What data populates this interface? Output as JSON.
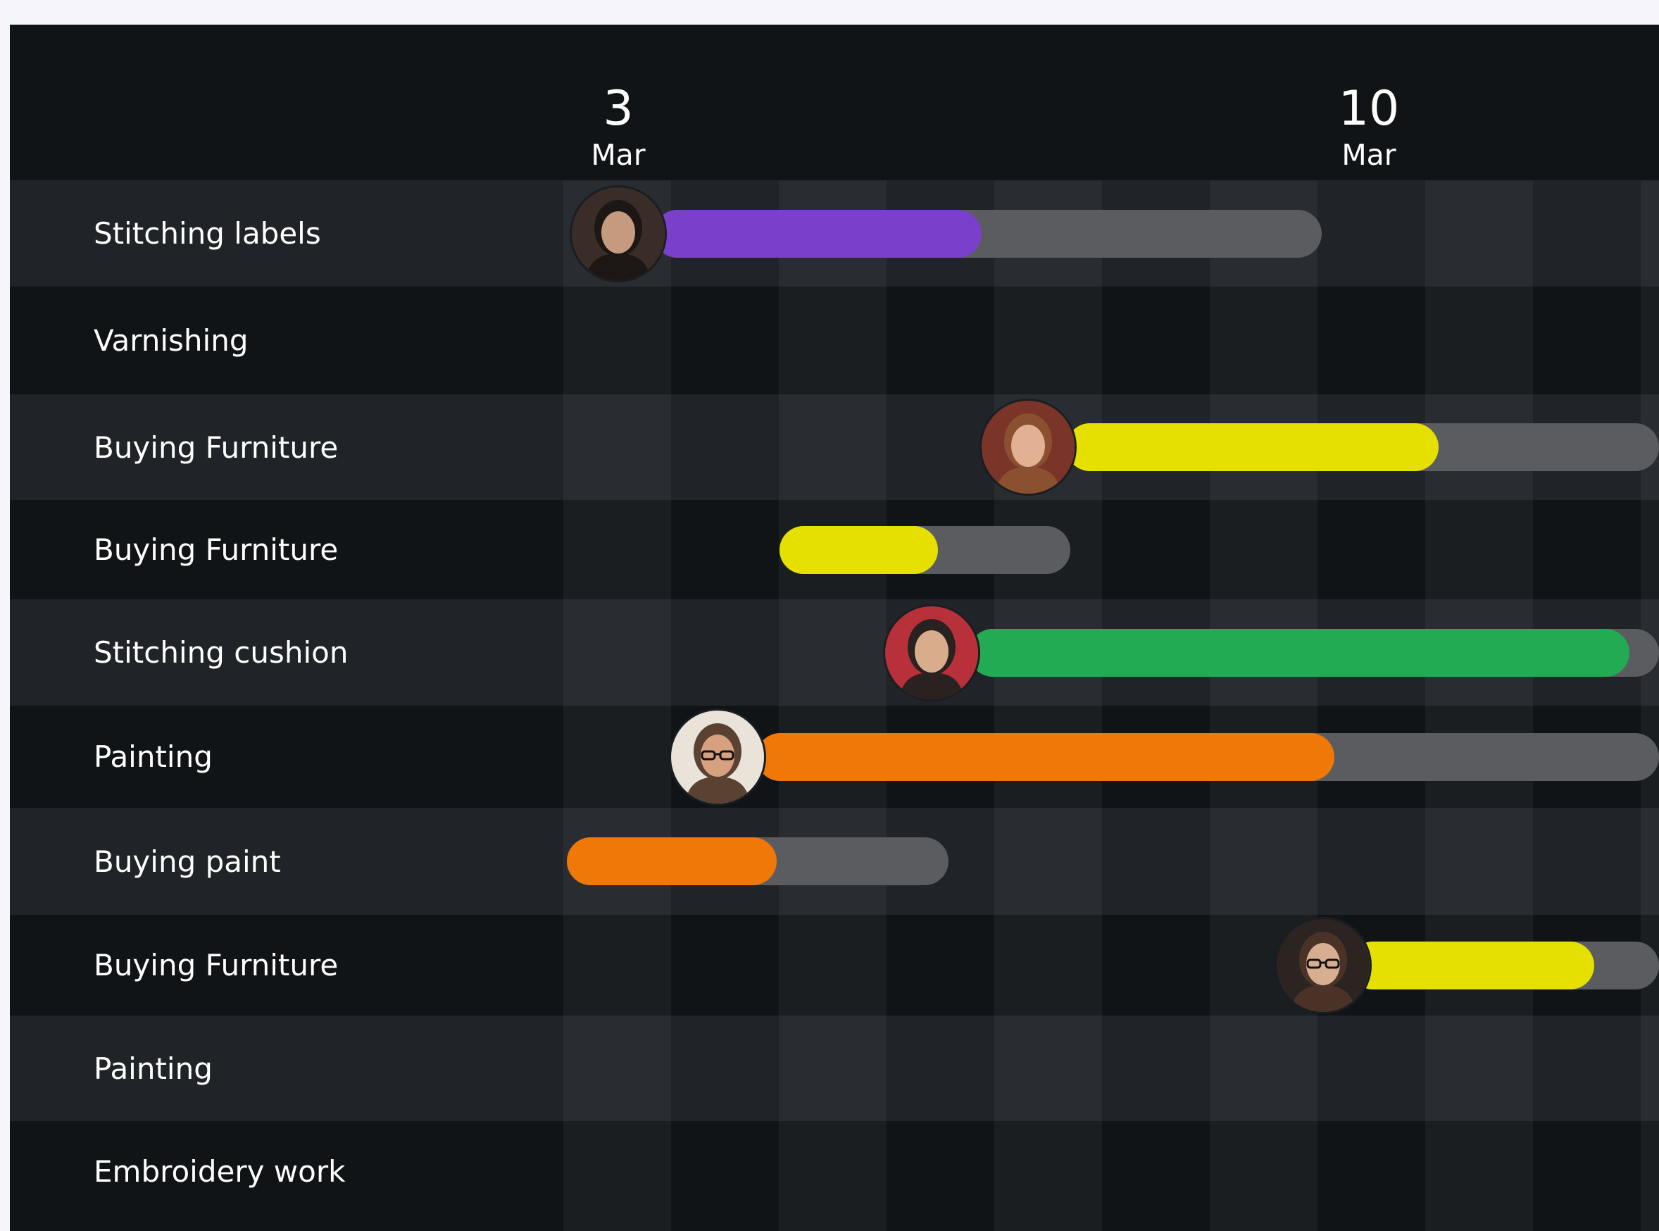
{
  "timeline": {
    "dates": [
      {
        "day": "3",
        "month": "Mar"
      },
      {
        "day": "10",
        "month": "Mar"
      }
    ]
  },
  "tasks": [
    {
      "name": "Stitching labels",
      "color": "#7a40cc",
      "progress": 0.51,
      "avatar": "woman-dark-hair-avatar"
    },
    {
      "name": "Varnishing",
      "color": null,
      "progress": null,
      "avatar": null
    },
    {
      "name": "Buying Furniture",
      "color": "#e6e000",
      "progress": 0.55,
      "avatar": "woman-brick-wall-avatar"
    },
    {
      "name": "Buying Furniture",
      "color": "#e6e000",
      "progress": 0.55,
      "avatar": null
    },
    {
      "name": "Stitching cushion",
      "color": "#22ab52",
      "progress": 0.95,
      "avatar": "man-red-background-avatar"
    },
    {
      "name": "Painting",
      "color": "#ef7807",
      "progress": 0.62,
      "avatar": "man-glasses-avatar"
    },
    {
      "name": "Buying paint",
      "color": "#ef7807",
      "progress": 0.55,
      "avatar": null
    },
    {
      "name": "Buying Furniture",
      "color": "#e6e000",
      "progress": 0.7,
      "avatar": "woman-glasses-avatar"
    },
    {
      "name": "Painting",
      "color": null,
      "progress": null,
      "avatar": null
    },
    {
      "name": "Embroidery work",
      "color": null,
      "progress": null,
      "avatar": null
    }
  ]
}
